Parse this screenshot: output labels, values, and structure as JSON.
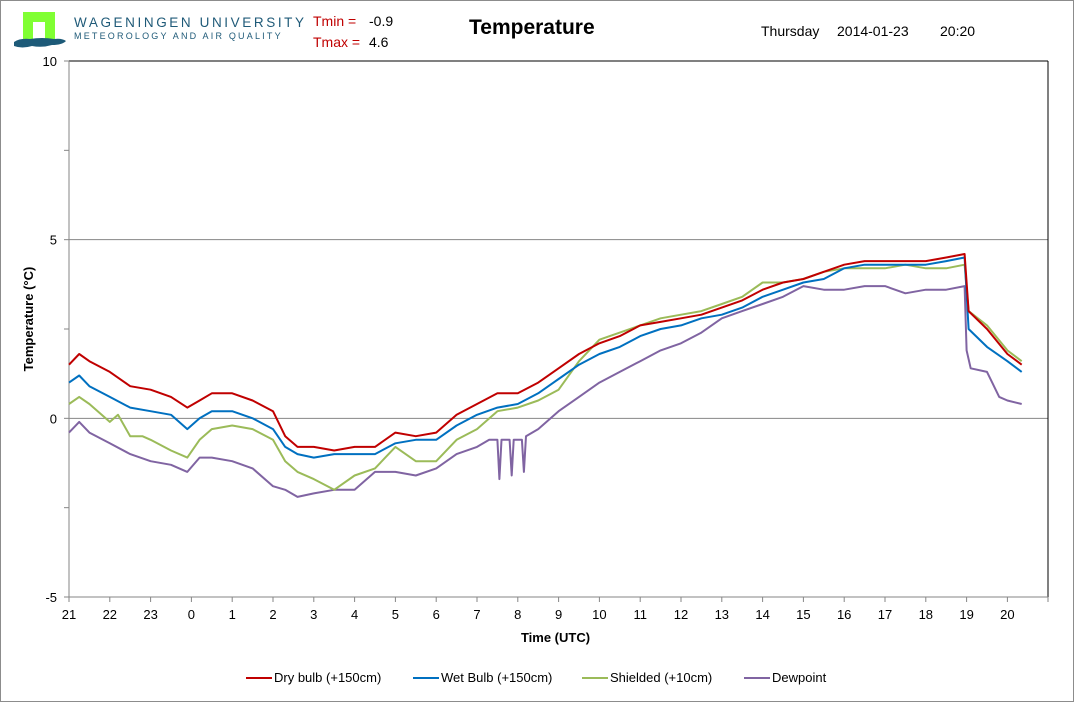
{
  "header": {
    "university": "WAGENINGEN UNIVERSITY",
    "department": "METEOROLOGY AND AIR QUALITY",
    "tmin_label": "Tmin =",
    "tmin_value": "-0.9",
    "tmax_label": "Tmax =",
    "tmax_value": "4.6",
    "title": "Temperature",
    "weekday": "Thursday",
    "date": "2014-01-23",
    "time": "20:20",
    "logo_colors": {
      "square": "#80ff33",
      "wave": "#1d5a78"
    }
  },
  "chart_data": {
    "type": "line",
    "title": "Temperature",
    "xlabel": "Time (UTC)",
    "ylabel": "Temperature (°C)",
    "ylim": [
      -5,
      10
    ],
    "yticks": [
      -5,
      0,
      5,
      10
    ],
    "y_gridlines": [
      0,
      5
    ],
    "x_tick_labels": [
      "21",
      "22",
      "23",
      "0",
      "1",
      "2",
      "3",
      "4",
      "5",
      "6",
      "7",
      "8",
      "9",
      "10",
      "11",
      "12",
      "13",
      "14",
      "15",
      "16",
      "17",
      "18",
      "19",
      "20"
    ],
    "x_unit": "hours since 21:00 UTC (previous day)",
    "xlim": [
      0,
      24
    ],
    "legend_position": "bottom",
    "series": [
      {
        "name": "Dry bulb (+150cm)",
        "color": "#c00000",
        "x": [
          0,
          0.25,
          0.5,
          1,
          1.5,
          2,
          2.5,
          2.9,
          3.2,
          3.5,
          4,
          4.5,
          5,
          5.3,
          5.6,
          6,
          6.5,
          7,
          7.5,
          8,
          8.5,
          9,
          9.5,
          10,
          10.5,
          11,
          11.5,
          12,
          12.5,
          13,
          13.5,
          14,
          14.5,
          15,
          15.5,
          16,
          16.5,
          17,
          17.5,
          18,
          18.5,
          19,
          19.5,
          20,
          20.5,
          21,
          21.5,
          21.95,
          22.05,
          22.5,
          23,
          23.35
        ],
        "values": [
          1.5,
          1.8,
          1.6,
          1.3,
          0.9,
          0.8,
          0.6,
          0.3,
          0.5,
          0.7,
          0.7,
          0.5,
          0.2,
          -0.5,
          -0.8,
          -0.8,
          -0.9,
          -0.8,
          -0.8,
          -0.4,
          -0.5,
          -0.4,
          0.1,
          0.4,
          0.7,
          0.7,
          1.0,
          1.4,
          1.8,
          2.1,
          2.3,
          2.6,
          2.7,
          2.8,
          2.9,
          3.1,
          3.3,
          3.6,
          3.8,
          3.9,
          4.1,
          4.3,
          4.4,
          4.4,
          4.4,
          4.4,
          4.5,
          4.6,
          3.0,
          2.5,
          1.8,
          1.5
        ]
      },
      {
        "name": "Wet Bulb (+150cm)",
        "color": "#0070c0",
        "x": [
          0,
          0.25,
          0.5,
          1,
          1.5,
          2,
          2.5,
          2.9,
          3.2,
          3.5,
          4,
          4.5,
          5,
          5.3,
          5.6,
          6,
          6.5,
          7,
          7.5,
          8,
          8.5,
          9,
          9.5,
          10,
          10.5,
          11,
          11.5,
          12,
          12.5,
          13,
          13.5,
          14,
          14.5,
          15,
          15.5,
          16,
          16.5,
          17,
          17.5,
          18,
          18.5,
          19,
          19.5,
          20,
          20.5,
          21,
          21.5,
          21.95,
          22.05,
          22.5,
          23,
          23.35
        ],
        "values": [
          1.0,
          1.2,
          0.9,
          0.6,
          0.3,
          0.2,
          0.1,
          -0.3,
          0.0,
          0.2,
          0.2,
          0.0,
          -0.3,
          -0.8,
          -1.0,
          -1.1,
          -1.0,
          -1.0,
          -1.0,
          -0.7,
          -0.6,
          -0.6,
          -0.2,
          0.1,
          0.3,
          0.4,
          0.7,
          1.1,
          1.5,
          1.8,
          2.0,
          2.3,
          2.5,
          2.6,
          2.8,
          2.9,
          3.1,
          3.4,
          3.6,
          3.8,
          3.9,
          4.2,
          4.3,
          4.3,
          4.3,
          4.3,
          4.4,
          4.5,
          2.5,
          2.0,
          1.6,
          1.3
        ]
      },
      {
        "name": "Shielded (+10cm)",
        "color": "#9bbb59",
        "x": [
          0,
          0.25,
          0.5,
          1,
          1.2,
          1.5,
          1.8,
          2,
          2.5,
          2.9,
          3.2,
          3.5,
          4,
          4.5,
          5,
          5.3,
          5.6,
          6,
          6.5,
          7,
          7.5,
          8,
          8.5,
          9,
          9.5,
          10,
          10.5,
          11,
          11.5,
          12,
          12.5,
          13,
          13.5,
          14,
          14.5,
          15,
          15.5,
          16,
          16.5,
          17,
          17.5,
          18,
          18.5,
          19,
          19.5,
          20,
          20.5,
          21,
          21.5,
          21.95,
          22.05,
          22.5,
          23,
          23.35
        ],
        "values": [
          0.4,
          0.6,
          0.4,
          -0.1,
          0.1,
          -0.5,
          -0.5,
          -0.6,
          -0.9,
          -1.1,
          -0.6,
          -0.3,
          -0.2,
          -0.3,
          -0.6,
          -1.2,
          -1.5,
          -1.7,
          -2.0,
          -1.6,
          -1.4,
          -0.8,
          -1.2,
          -1.2,
          -0.6,
          -0.3,
          0.2,
          0.3,
          0.5,
          0.8,
          1.6,
          2.2,
          2.4,
          2.6,
          2.8,
          2.9,
          3.0,
          3.2,
          3.4,
          3.8,
          3.8,
          3.9,
          4.1,
          4.2,
          4.2,
          4.2,
          4.3,
          4.2,
          4.2,
          4.3,
          3.0,
          2.6,
          1.9,
          1.6
        ]
      },
      {
        "name": "Dewpoint",
        "color": "#8064a2",
        "x": [
          0,
          0.25,
          0.5,
          1,
          1.5,
          2,
          2.5,
          2.9,
          3.2,
          3.5,
          4,
          4.5,
          5,
          5.3,
          5.6,
          6,
          6.5,
          7,
          7.5,
          8,
          8.5,
          9,
          9.5,
          10,
          10.3,
          10.5,
          10.55,
          10.6,
          10.8,
          10.85,
          10.9,
          11.1,
          11.15,
          11.2,
          11.5,
          12,
          12.5,
          13,
          13.5,
          14,
          14.5,
          15,
          15.5,
          16,
          16.5,
          17,
          17.5,
          18,
          18.5,
          19,
          19.5,
          20,
          20.5,
          21,
          21.5,
          21.95,
          22.0,
          22.1,
          22.5,
          22.8,
          23,
          23.35
        ],
        "values": [
          -0.4,
          -0.1,
          -0.4,
          -0.7,
          -1.0,
          -1.2,
          -1.3,
          -1.5,
          -1.1,
          -1.1,
          -1.2,
          -1.4,
          -1.9,
          -2.0,
          -2.2,
          -2.1,
          -2.0,
          -2.0,
          -1.5,
          -1.5,
          -1.6,
          -1.4,
          -1.0,
          -0.8,
          -0.6,
          -0.6,
          -1.7,
          -0.6,
          -0.6,
          -1.6,
          -0.6,
          -0.6,
          -1.5,
          -0.5,
          -0.3,
          0.2,
          0.6,
          1.0,
          1.3,
          1.6,
          1.9,
          2.1,
          2.4,
          2.8,
          3.0,
          3.2,
          3.4,
          3.7,
          3.6,
          3.6,
          3.7,
          3.7,
          3.5,
          3.6,
          3.6,
          3.7,
          1.9,
          1.4,
          1.3,
          0.6,
          0.5,
          0.4
        ]
      }
    ]
  },
  "legend": [
    {
      "label": "Dry bulb (+150cm)",
      "color": "#c00000"
    },
    {
      "label": "Wet Bulb (+150cm)",
      "color": "#0070c0"
    },
    {
      "label": "Shielded (+10cm)",
      "color": "#9bbb59"
    },
    {
      "label": "Dewpoint",
      "color": "#8064a2"
    }
  ]
}
